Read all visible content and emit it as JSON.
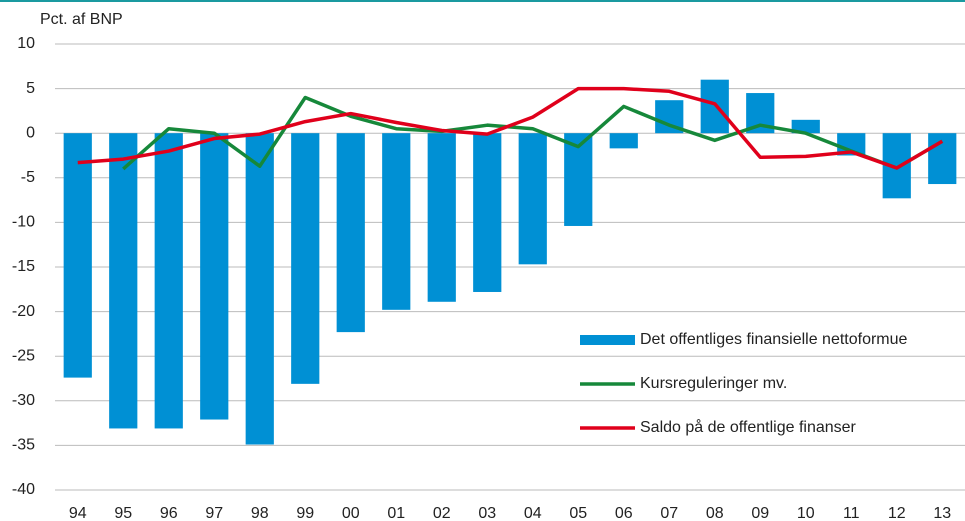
{
  "chart_data": {
    "type": "bar_line",
    "ylabel": "Pct. af BNP",
    "categories": [
      "94",
      "95",
      "96",
      "97",
      "98",
      "99",
      "00",
      "01",
      "02",
      "03",
      "04",
      "05",
      "06",
      "07",
      "08",
      "09",
      "10",
      "11",
      "12",
      "13"
    ],
    "series": [
      {
        "name": "Det offentliges finansielle nettoformue",
        "type": "bar",
        "color": "#0090d4",
        "values": [
          -27.4,
          -33.1,
          -33.1,
          -32.1,
          -34.9,
          -28.1,
          -22.3,
          -19.8,
          -18.9,
          -17.8,
          -14.7,
          -10.4,
          -1.7,
          3.7,
          6.0,
          4.5,
          1.5,
          -2.5,
          -7.3,
          -5.7
        ]
      },
      {
        "name": "Kursreguleringer mv.",
        "type": "line",
        "color": "#16883a",
        "values": [
          null,
          -4.0,
          0.5,
          0.0,
          -3.7,
          4.0,
          1.9,
          0.5,
          0.2,
          0.9,
          0.5,
          -1.5,
          3.0,
          0.9,
          -0.8,
          0.9,
          0.0,
          -2.0,
          -3.9,
          -0.9
        ]
      },
      {
        "name": "Saldo på de offentlige finanser",
        "type": "line",
        "color": "#e0001b",
        "values": [
          -3.3,
          -2.9,
          -2.0,
          -0.6,
          -0.1,
          1.3,
          2.2,
          1.2,
          0.3,
          -0.1,
          1.8,
          5.0,
          5.0,
          4.7,
          3.3,
          -2.7,
          -2.6,
          -2.1,
          -3.9,
          -0.9
        ]
      }
    ],
    "ylim": [
      -40,
      10
    ],
    "yticks": [
      -40,
      -35,
      -30,
      -25,
      -20,
      -15,
      -10,
      -5,
      0,
      5,
      10
    ],
    "grid": true,
    "legend": "lower right"
  }
}
